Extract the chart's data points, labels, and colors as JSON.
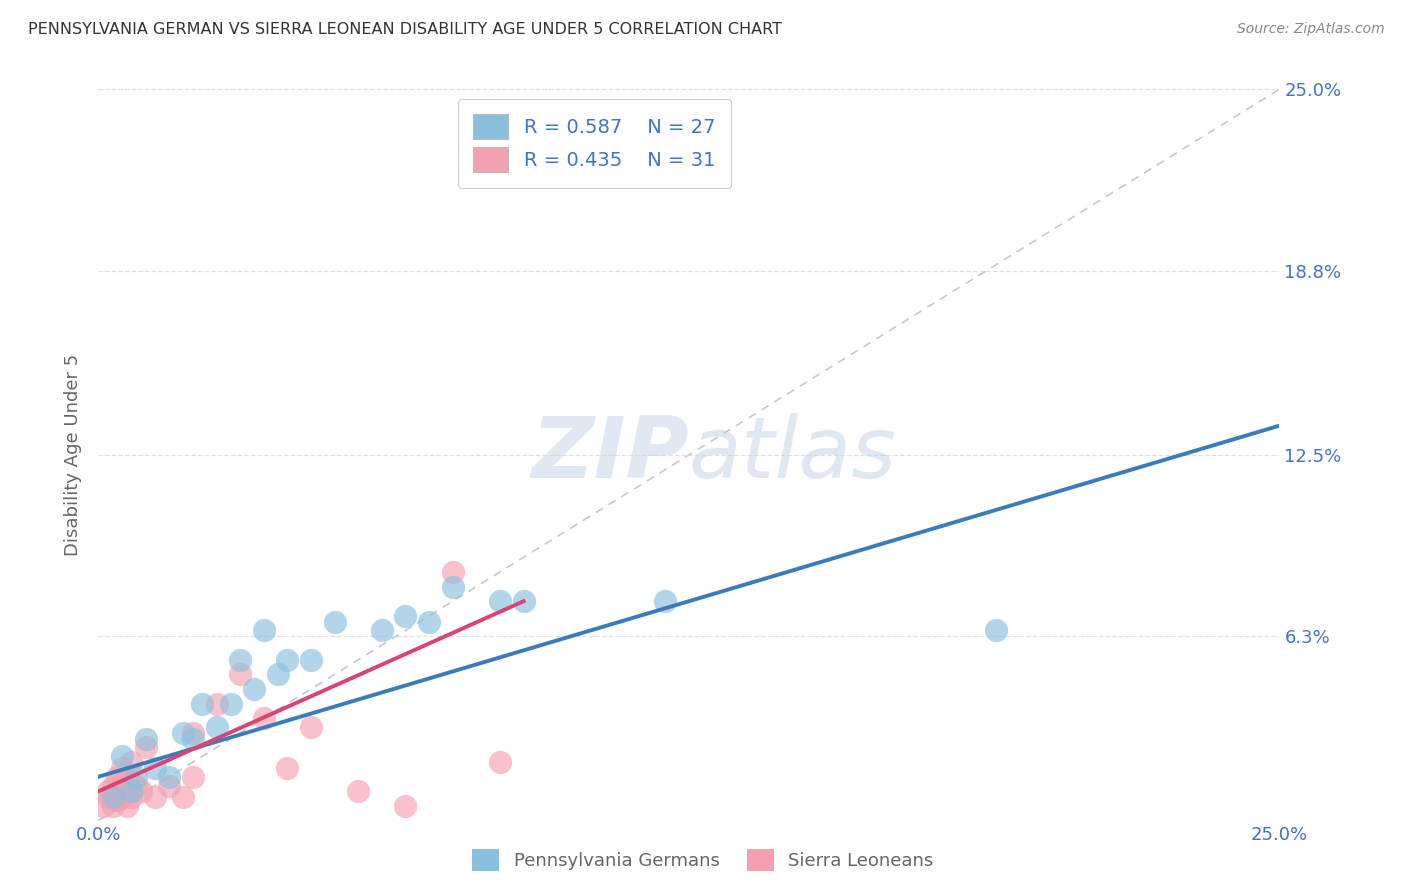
{
  "title": "PENNSYLVANIA GERMAN VS SIERRA LEONEAN DISABILITY AGE UNDER 5 CORRELATION CHART",
  "source": "Source: ZipAtlas.com",
  "ylabel": "Disability Age Under 5",
  "xlim": [
    0.0,
    0.25
  ],
  "ylim": [
    0.0,
    0.25
  ],
  "ytick_values": [
    0.063,
    0.125,
    0.188,
    0.25
  ],
  "ytick_labels": [
    "6.3%",
    "12.5%",
    "18.8%",
    "25.0%"
  ],
  "blue_label": "Pennsylvania Germans",
  "pink_label": "Sierra Leoneans",
  "legend_r_blue": "0.587",
  "legend_n_blue": "27",
  "legend_r_pink": "0.435",
  "legend_n_pink": "31",
  "blue_color": "#8bbfde",
  "pink_color": "#f5a0b0",
  "blue_line_color": "#3a7bbe",
  "pink_line_color": "#d94470",
  "diagonal_color": "#c8c8c8",
  "watermark_zip": "ZIP",
  "watermark_atlas": "atlas",
  "background_color": "#ffffff",
  "grid_color": "#e0e0e0",
  "blue_scatter_x": [
    0.003,
    0.005,
    0.007,
    0.008,
    0.01,
    0.012,
    0.015,
    0.018,
    0.02,
    0.022,
    0.025,
    0.028,
    0.03,
    0.033,
    0.035,
    0.038,
    0.04,
    0.045,
    0.05,
    0.06,
    0.065,
    0.07,
    0.075,
    0.085,
    0.09,
    0.12,
    0.19
  ],
  "blue_scatter_y": [
    0.008,
    0.022,
    0.01,
    0.015,
    0.028,
    0.018,
    0.015,
    0.03,
    0.028,
    0.04,
    0.032,
    0.04,
    0.055,
    0.045,
    0.065,
    0.05,
    0.055,
    0.055,
    0.068,
    0.065,
    0.07,
    0.068,
    0.08,
    0.075,
    0.075,
    0.075,
    0.065
  ],
  "pink_scatter_x": [
    0.001,
    0.002,
    0.002,
    0.003,
    0.003,
    0.004,
    0.004,
    0.004,
    0.005,
    0.005,
    0.006,
    0.006,
    0.007,
    0.007,
    0.008,
    0.009,
    0.01,
    0.012,
    0.015,
    0.018,
    0.02,
    0.02,
    0.025,
    0.03,
    0.035,
    0.04,
    0.045,
    0.055,
    0.065,
    0.075,
    0.085
  ],
  "pink_scatter_y": [
    0.005,
    0.008,
    0.01,
    0.005,
    0.012,
    0.007,
    0.01,
    0.015,
    0.008,
    0.018,
    0.005,
    0.015,
    0.008,
    0.02,
    0.012,
    0.01,
    0.025,
    0.008,
    0.012,
    0.008,
    0.015,
    0.03,
    0.04,
    0.05,
    0.035,
    0.018,
    0.032,
    0.01,
    0.005,
    0.085,
    0.02
  ],
  "blue_line_x": [
    0.0,
    0.25
  ],
  "blue_line_y": [
    0.015,
    0.135
  ],
  "pink_line_x": [
    0.0,
    0.09
  ],
  "pink_line_y": [
    0.01,
    0.075
  ],
  "tick_color": "#4472c4",
  "label_color": "#666666",
  "title_color": "#333333",
  "source_color": "#888888"
}
